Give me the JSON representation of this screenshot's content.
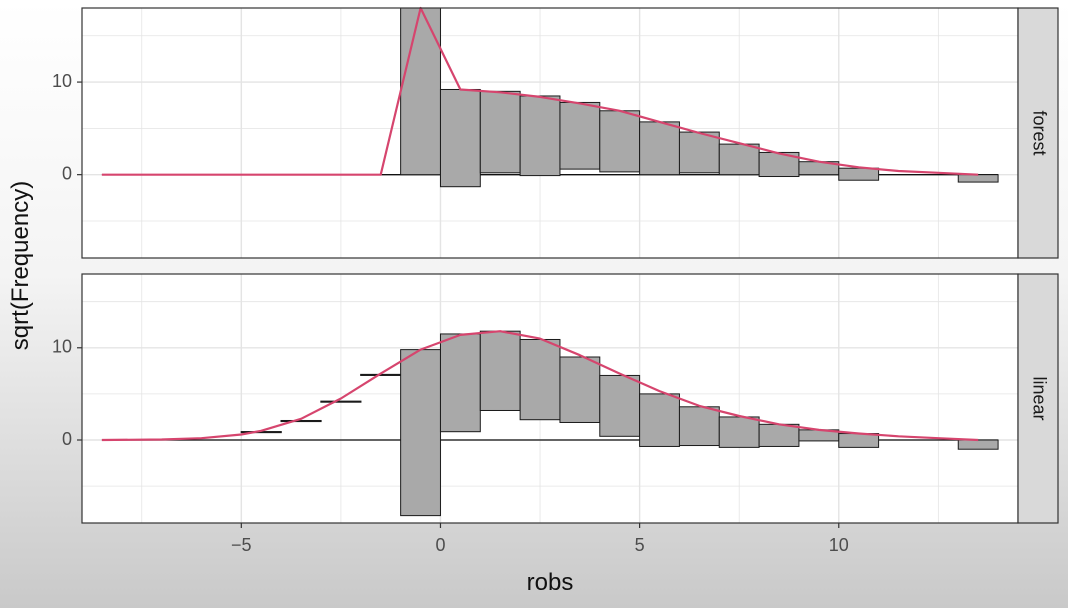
{
  "chart_data": {
    "type": "bar",
    "subtype": "hanging-rootogram",
    "xlabel": "robs",
    "ylabel": "sqrt(Frequency)",
    "xlim": [
      -9,
      14.5
    ],
    "ylim": [
      -9,
      18
    ],
    "x_ticks": [
      -5,
      0,
      5,
      10
    ],
    "y_ticks": [
      0,
      10
    ],
    "grid": true,
    "bar_width": 1,
    "colors": {
      "bar_fill": "#a9a9a9",
      "bar_stroke": "#1a1a1a",
      "curve": "#d6456e",
      "strip_fill": "#d9d9d9",
      "grid": "#e4e4e4"
    },
    "panels": [
      {
        "strip": "forest",
        "bins": [
          {
            "x": -0.5,
            "top": 18.0,
            "bottom": 0.0
          },
          {
            "x": 0.5,
            "top": 9.2,
            "bottom": -1.3
          },
          {
            "x": 1.5,
            "top": 9.0,
            "bottom": 0.2
          },
          {
            "x": 2.5,
            "top": 8.5,
            "bottom": -0.1
          },
          {
            "x": 3.5,
            "top": 7.8,
            "bottom": 0.6
          },
          {
            "x": 4.5,
            "top": 6.9,
            "bottom": 0.3
          },
          {
            "x": 5.5,
            "top": 5.7,
            "bottom": 0.0
          },
          {
            "x": 6.5,
            "top": 4.6,
            "bottom": 0.2
          },
          {
            "x": 7.5,
            "top": 3.3,
            "bottom": 0.0
          },
          {
            "x": 8.5,
            "top": 2.4,
            "bottom": -0.2
          },
          {
            "x": 9.5,
            "top": 1.4,
            "bottom": 0.0
          },
          {
            "x": 10.5,
            "top": 0.7,
            "bottom": -0.6
          },
          {
            "x": 13.5,
            "top": 0.0,
            "bottom": -0.8
          }
        ],
        "curve": {
          "x": [
            -8.5,
            -3,
            -1.5,
            -0.5,
            0.5,
            1.5,
            2.5,
            3.5,
            4.5,
            5.5,
            6.5,
            7.5,
            8.5,
            9.5,
            10.5,
            11.5,
            12.5,
            13.5
          ],
          "y": [
            0,
            0,
            0,
            18.0,
            9.2,
            8.9,
            8.4,
            7.7,
            6.9,
            5.7,
            4.5,
            3.4,
            2.3,
            1.4,
            0.8,
            0.4,
            0.2,
            0.0
          ]
        }
      },
      {
        "strip": "linear",
        "bins": [
          {
            "x": -4.5,
            "top": 0.9,
            "bottom": 0.9
          },
          {
            "x": -3.5,
            "top": 2.1,
            "bottom": 2.1
          },
          {
            "x": -2.5,
            "top": 4.2,
            "bottom": 4.2
          },
          {
            "x": -1.5,
            "top": 7.1,
            "bottom": 7.1
          },
          {
            "x": -0.5,
            "top": 9.8,
            "bottom": -8.2
          },
          {
            "x": 0.5,
            "top": 11.5,
            "bottom": 0.9
          },
          {
            "x": 1.5,
            "top": 11.8,
            "bottom": 3.2
          },
          {
            "x": 2.5,
            "top": 10.9,
            "bottom": 2.2
          },
          {
            "x": 3.5,
            "top": 9.0,
            "bottom": 1.9
          },
          {
            "x": 4.5,
            "top": 7.0,
            "bottom": 0.4
          },
          {
            "x": 5.5,
            "top": 5.0,
            "bottom": -0.7
          },
          {
            "x": 6.5,
            "top": 3.6,
            "bottom": -0.6
          },
          {
            "x": 7.5,
            "top": 2.5,
            "bottom": -0.8
          },
          {
            "x": 8.5,
            "top": 1.7,
            "bottom": -0.7
          },
          {
            "x": 9.5,
            "top": 1.1,
            "bottom": -0.1
          },
          {
            "x": 10.5,
            "top": 0.7,
            "bottom": -0.8
          },
          {
            "x": 13.5,
            "top": 0.0,
            "bottom": -1.0
          }
        ],
        "curve": {
          "x": [
            -8.5,
            -7,
            -6,
            -5,
            -4.5,
            -3.5,
            -2.5,
            -1.5,
            -0.5,
            0.5,
            1.5,
            2.5,
            3.5,
            4.5,
            5.5,
            6.5,
            7.5,
            8.5,
            9.5,
            10.5,
            11.5,
            12.5,
            13.5
          ],
          "y": [
            0,
            0.05,
            0.2,
            0.6,
            1.0,
            2.3,
            4.5,
            7.2,
            9.8,
            11.4,
            11.8,
            11.0,
            9.2,
            7.2,
            5.3,
            3.7,
            2.6,
            1.7,
            1.1,
            0.7,
            0.4,
            0.2,
            0.0
          ]
        }
      }
    ]
  }
}
